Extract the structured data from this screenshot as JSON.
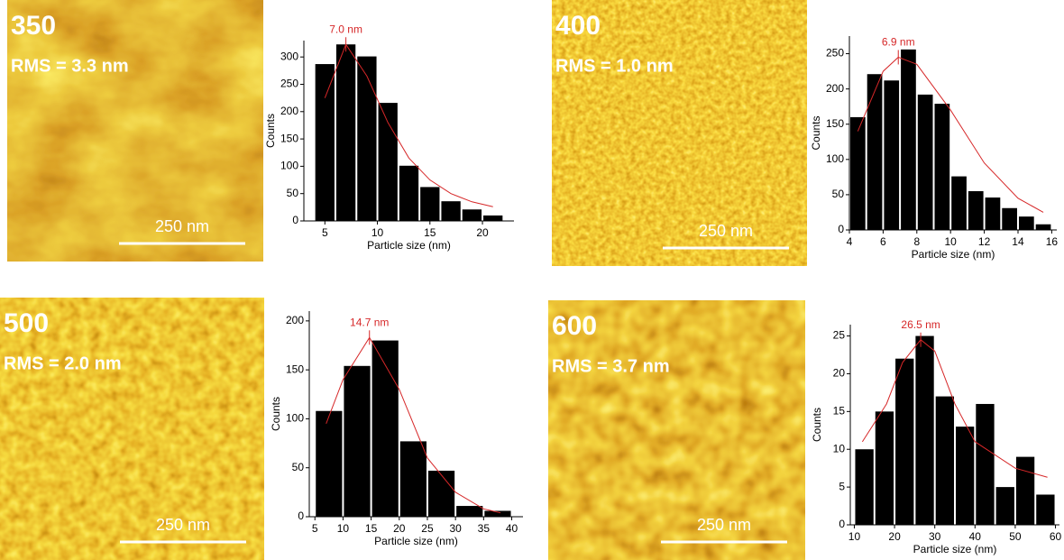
{
  "images": [
    {
      "label": "350",
      "rms": "RMS = 3.3 nm",
      "scale": "250 nm"
    },
    {
      "label": "400",
      "rms": "RMS = 1.0 nm",
      "scale": "250 nm"
    },
    {
      "label": "500",
      "rms": "RMS = 2.0 nm",
      "scale": "250 nm"
    },
    {
      "label": "600",
      "rms": "RMS = 3.7 nm",
      "scale": "250 nm"
    }
  ],
  "chart_data": [
    {
      "type": "histogram",
      "x_label": "Particle size (nm)",
      "y_label": "Counts",
      "color": "#000000",
      "fit_color": "#d62728",
      "bins": [
        4,
        6,
        8,
        10,
        12,
        14,
        16,
        18,
        20,
        22
      ],
      "values": [
        287,
        323,
        301,
        216,
        101,
        62,
        36,
        21,
        10
      ],
      "xlim": [
        3,
        23
      ],
      "xticks": [
        5,
        10,
        15,
        20
      ],
      "ylim": [
        0,
        330
      ],
      "yticks": [
        0,
        50,
        100,
        150,
        200,
        250,
        300
      ],
      "fit": {
        "x": [
          5,
          7,
          9,
          11,
          13,
          15,
          17,
          19,
          21
        ],
        "y": [
          225,
          323,
          265,
          180,
          115,
          75,
          50,
          35,
          26
        ]
      },
      "peak": 7.0,
      "annotation": "7.0 nm"
    },
    {
      "type": "histogram",
      "x_label": "Particle size (nm)",
      "y_label": "Counts",
      "color": "#000000",
      "fit_color": "#d62728",
      "bins": [
        4,
        5,
        6,
        7,
        8,
        9,
        10,
        11,
        12,
        13,
        14,
        15,
        16
      ],
      "values": [
        160,
        221,
        212,
        256,
        192,
        179,
        76,
        55,
        46,
        31,
        19,
        8
      ],
      "xlim": [
        4,
        16.3
      ],
      "xticks": [
        4,
        6,
        8,
        10,
        12,
        14,
        16
      ],
      "ylim": [
        0,
        275
      ],
      "yticks": [
        0,
        50,
        100,
        150,
        200,
        250
      ],
      "fit": {
        "x": [
          4.5,
          6,
          6.9,
          8,
          10,
          12,
          14,
          15.5
        ],
        "y": [
          140,
          225,
          245,
          235,
          170,
          95,
          45,
          25
        ]
      },
      "peak": 6.9,
      "annotation": "6.9 nm"
    },
    {
      "type": "histogram",
      "x_label": "Particle size (nm)",
      "y_label": "Counts",
      "color": "#000000",
      "fit_color": "#d62728",
      "bins": [
        5,
        10,
        15,
        20,
        25,
        30,
        35,
        40
      ],
      "values": [
        108,
        154,
        180,
        77,
        47,
        11,
        6
      ],
      "xlim": [
        4,
        42
      ],
      "xticks": [
        5,
        10,
        15,
        20,
        25,
        30,
        35,
        40
      ],
      "ylim": [
        0,
        210
      ],
      "yticks": [
        0,
        50,
        100,
        150,
        200
      ],
      "fit": {
        "x": [
          7,
          10,
          14.7,
          20,
          25,
          30,
          35,
          38
        ],
        "y": [
          95,
          140,
          183,
          130,
          60,
          25,
          8,
          4
        ]
      },
      "peak": 14.7,
      "annotation": "14.7 nm"
    },
    {
      "type": "histogram",
      "x_label": "Particle size (nm)",
      "y_label": "Counts",
      "color": "#000000",
      "fit_color": "#d62728",
      "bins": [
        10,
        15,
        20,
        25,
        30,
        35,
        40,
        45,
        50,
        55,
        60
      ],
      "values": [
        10,
        15,
        22,
        25,
        17,
        13,
        16,
        5,
        9,
        4
      ],
      "xlim": [
        9,
        61
      ],
      "xticks": [
        10,
        20,
        30,
        40,
        50,
        60
      ],
      "ylim": [
        0,
        26.5
      ],
      "yticks": [
        0,
        5,
        10,
        15,
        20,
        25
      ],
      "fit": {
        "x": [
          12,
          18,
          22,
          26.5,
          30,
          35,
          40,
          50,
          58
        ],
        "y": [
          11,
          16,
          21.5,
          24.5,
          23,
          16,
          11,
          7.5,
          6.3
        ]
      },
      "peak": 26.5,
      "annotation": "26.5 nm"
    }
  ]
}
